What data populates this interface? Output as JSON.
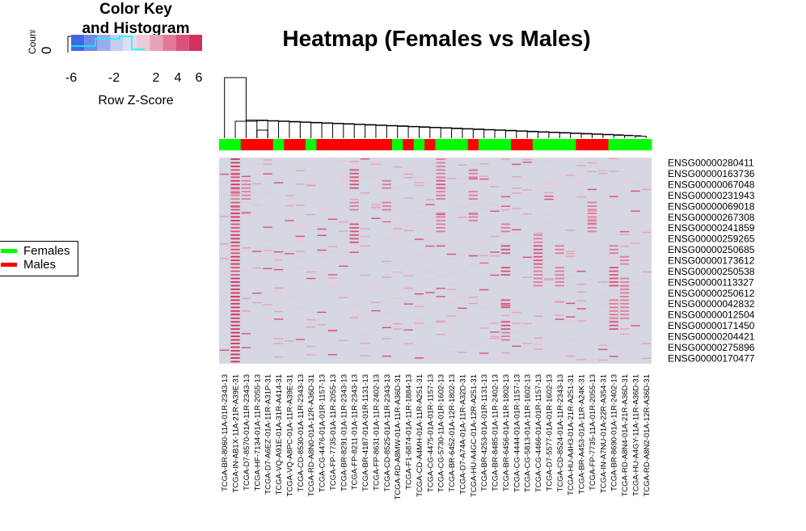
{
  "title": "Heatmap (Females vs Males)",
  "color_key": {
    "title_line1": "Color Key",
    "title_line2": "and Histogram",
    "xlabel": "Row Z-Score",
    "ylabel": "Count",
    "count_tick": "0",
    "ticks": [
      "-6",
      "-2",
      "2",
      "4",
      "6"
    ],
    "colors": [
      "#4169e1",
      "#6f8ae6",
      "#9aacec",
      "#c4cef3",
      "#dcdff1",
      "#eccad6",
      "#e7a3b7",
      "#e07a98",
      "#d9527a",
      "#d4305f"
    ]
  },
  "legend": {
    "items": [
      {
        "label": "Females",
        "color": "#00ff00"
      },
      {
        "label": "Males",
        "color": "#ff0000"
      }
    ]
  },
  "chart_data": {
    "type": "heatmap",
    "title": "Heatmap (Females vs Males)",
    "x_range_zscore": [
      -6,
      6
    ],
    "background_color": "#d5d7e2",
    "genes": [
      "ENSG00000280411",
      "ENSG00000163736",
      "ENSG00000067048",
      "ENSG00000231943",
      "ENSG00000069018",
      "ENSG00000267308",
      "ENSG00000241859",
      "ENSG00000259265",
      "ENSG00000250685",
      "ENSG00000173612",
      "ENSG00000250538",
      "ENSG00000113327",
      "ENSG00000250612",
      "ENSG00000042832",
      "ENSG00000012504",
      "ENSG00000171450",
      "ENSG00000204421",
      "ENSG00000275896",
      "ENSG00000170477"
    ],
    "samples": [
      "TCGA-BR-8060-11A-01R-2343-13",
      "TCGA-IN-AB1X-11A-21R-A39E-31",
      "TCGA-D7-8570-01A-11R-2343-13",
      "TCGA-HF-7134-01A-11R-2055-13",
      "TCGA-D7-A6EZ-01A-11R-A31P-31",
      "TCGA-VQ-A91E-01A-31R-A414-31",
      "TCGA-VQ-A8PC-01A-11R-A39E-31",
      "TCGA-CD-8530-01A-11R-2343-13",
      "TCGA-RD-A8N0-01A-12R-A36D-31",
      "TCGA-CG-4476-01A-01R-1157-13",
      "TCGA-FP-7735-01A-11R-2055-13",
      "TCGA-BR-8291-01A-11R-2343-13",
      "TCGA-FP-8211-01A-11R-2343-13",
      "TCGA-BR-4187-01A-01R-1131-13",
      "TCGA-FP-8631-01A-11R-2402-13",
      "TCGA-CD-8525-01A-11R-2343-13",
      "TCGA-RD-A8MW-01A-11R-A36D-31",
      "TCGA-F1-6874-01A-11R-1884-13",
      "TCGA-CD-A4MH-01A-11R-A251-31",
      "TCGA-CG-4475-01A-01R-1157-13",
      "TCGA-CG-5730-11A-01R-1602-13",
      "TCGA-BR-6452-01A-12R-1802-13",
      "TCGA-D7-A74A-01A-11R-A32D-31",
      "TCGA-HU-A4GC-01A-12R-A251-31",
      "TCGA-BR-4253-01A-01R-1131-13",
      "TCGA-BR-8485-01A-11R-2402-13",
      "TCGA-BR-6456-01A-11R-1802-13",
      "TCGA-CG-4444-01A-01R-1157-13",
      "TCGA-CG-5813-01A-11R-1602-13",
      "TCGA-CG-4466-01A-01R-1157-13",
      "TCGA-D7-5577-01A-01R-1602-13",
      "TCGA-CD-8524-01A-11R-2343-13",
      "TCGA-HU-A4H3-01A-21R-A251-31",
      "TCGA-BR-A453-01A-11R-A24K-31",
      "TCGA-FP-7735-11A-01R-2055-13",
      "TCGA-IN-A7NU-01A-22R-A354-31",
      "TCGA-BR-8690-01A-11R-2402-13",
      "TCGA-RD-A8N4-01A-21R-A36D-31",
      "TCGA-HU-A4GY-11A-11R-A36D-31",
      "TCGA-RD-A8N2-01A-12R-A36D-31"
    ],
    "sample_groups": [
      "Females",
      "Females",
      "Males",
      "Males",
      "Males",
      "Females",
      "Males",
      "Males",
      "Females",
      "Males",
      "Males",
      "Males",
      "Males",
      "Males",
      "Males",
      "Males",
      "Females",
      "Males",
      "Females",
      "Males",
      "Females",
      "Females",
      "Females",
      "Males",
      "Females",
      "Females",
      "Females",
      "Males",
      "Males",
      "Females",
      "Females",
      "Females",
      "Females",
      "Males",
      "Males",
      "Males",
      "Females",
      "Females",
      "Females",
      "Females"
    ],
    "group_colors": {
      "Females": "#00ff00",
      "Males": "#ff0000"
    },
    "high_value_cells": [
      [
        0,
        1,
        6
      ],
      [
        1,
        1,
        5
      ],
      [
        2,
        1,
        6
      ],
      [
        3,
        1,
        4
      ],
      [
        4,
        1,
        5
      ],
      [
        5,
        1,
        6
      ],
      [
        6,
        1,
        5
      ],
      [
        7,
        1,
        6
      ],
      [
        8,
        1,
        5
      ],
      [
        9,
        1,
        6
      ],
      [
        10,
        1,
        5
      ],
      [
        11,
        1,
        6
      ],
      [
        12,
        1,
        6
      ],
      [
        13,
        1,
        6
      ],
      [
        14,
        1,
        6
      ],
      [
        15,
        1,
        6
      ],
      [
        16,
        1,
        6
      ],
      [
        17,
        1,
        6
      ],
      [
        18,
        1,
        6
      ],
      [
        1,
        12,
        5
      ],
      [
        2,
        12,
        5
      ],
      [
        4,
        12,
        4
      ],
      [
        6,
        12,
        5
      ],
      [
        7,
        12,
        5
      ],
      [
        0,
        20,
        4
      ],
      [
        1,
        20,
        4
      ],
      [
        2,
        20,
        5
      ],
      [
        3,
        20,
        4
      ],
      [
        5,
        20,
        4
      ],
      [
        6,
        20,
        4
      ],
      [
        6,
        26,
        4
      ],
      [
        8,
        26,
        5
      ],
      [
        10,
        26,
        5
      ],
      [
        13,
        26,
        5
      ],
      [
        15,
        26,
        5
      ],
      [
        16,
        26,
        4
      ],
      [
        7,
        29,
        4
      ],
      [
        8,
        29,
        5
      ],
      [
        9,
        29,
        5
      ],
      [
        10,
        29,
        4
      ],
      [
        11,
        29,
        4
      ],
      [
        8,
        31,
        4
      ],
      [
        10,
        31,
        4
      ],
      [
        11,
        31,
        4
      ],
      [
        8,
        36,
        4
      ],
      [
        10,
        36,
        5
      ],
      [
        11,
        36,
        5
      ],
      [
        13,
        36,
        4
      ],
      [
        14,
        36,
        4
      ],
      [
        15,
        36,
        5
      ],
      [
        9,
        37,
        4
      ],
      [
        11,
        37,
        4
      ],
      [
        12,
        37,
        4
      ],
      [
        13,
        37,
        4
      ],
      [
        14,
        37,
        4
      ],
      [
        4,
        34,
        4
      ],
      [
        5,
        34,
        4
      ],
      [
        6,
        34,
        4
      ],
      [
        1,
        23,
        4
      ],
      [
        3,
        23,
        4
      ],
      [
        5,
        23,
        4
      ],
      [
        3,
        2,
        4
      ],
      [
        2,
        2,
        4
      ],
      [
        4,
        15,
        4
      ],
      [
        2,
        15,
        4
      ]
    ]
  }
}
